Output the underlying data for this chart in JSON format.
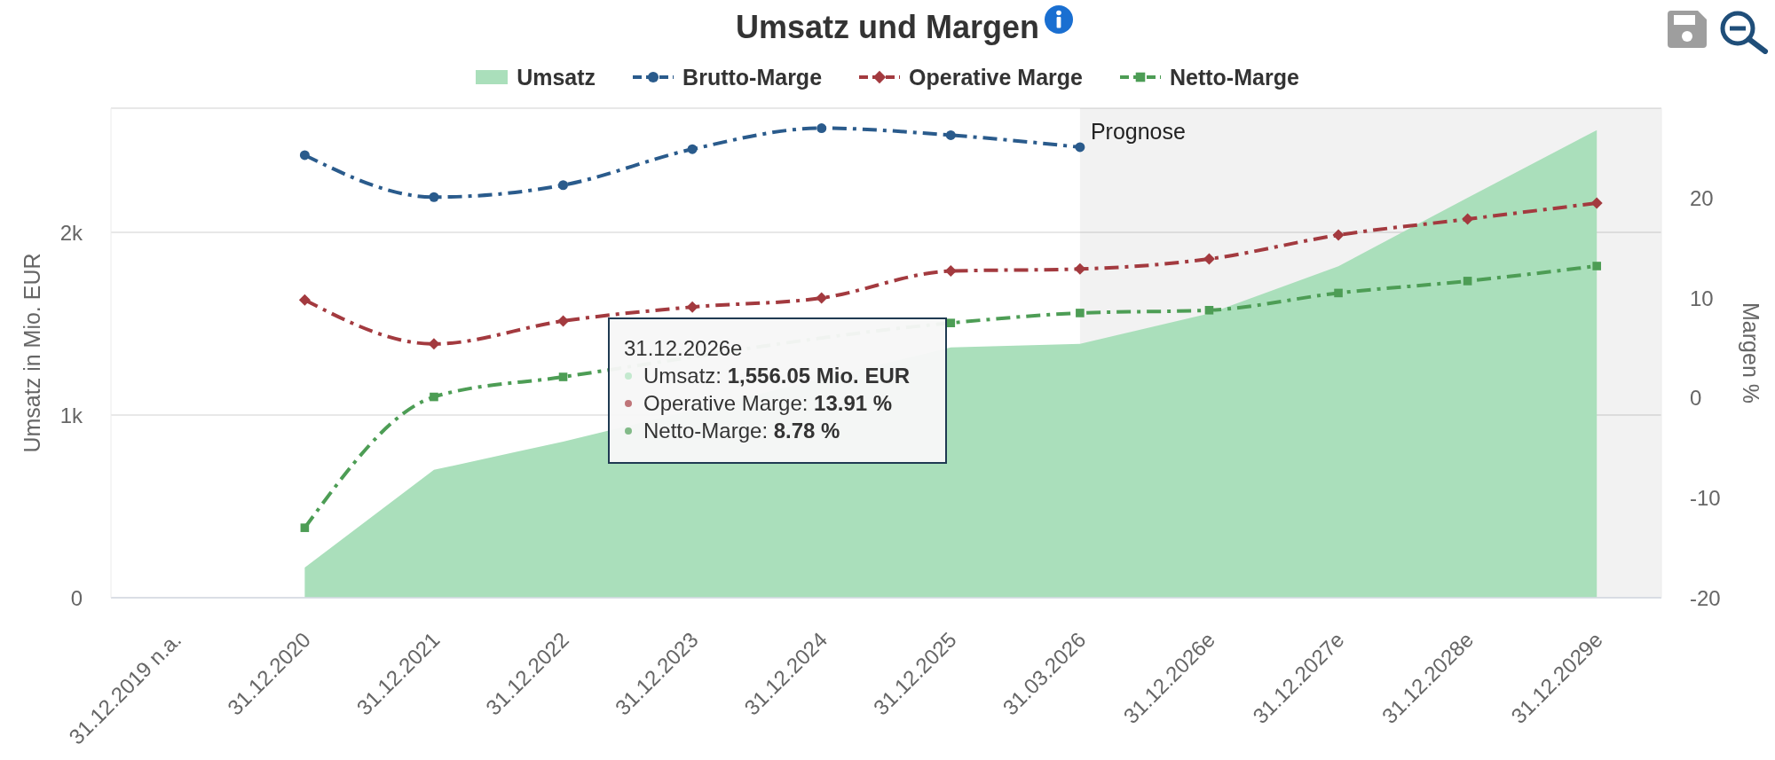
{
  "chart_data": {
    "type": "line",
    "title": "Umsatz und Margen",
    "ylabel": "Umsatz in Mio. EUR",
    "y2label": "Margen %",
    "categories": [
      "31.12.2019 n.a.",
      "31.12.2020",
      "31.12.2021",
      "31.12.2022",
      "31.12.2023",
      "31.12.2024",
      "31.12.2025",
      "31.03.2026",
      "31.12.2026e",
      "31.12.2027e",
      "31.12.2028e",
      "31.12.2029e"
    ],
    "series": [
      {
        "name": "Umsatz",
        "type": "area",
        "color": "#aadfbb",
        "values": [
          null,
          165,
          700,
          855,
          null,
          null,
          1370,
          1390,
          1556.05,
          1815,
          2190,
          2560
        ]
      },
      {
        "name": "Brutto-Marge",
        "axis": "y2",
        "color": "#2a5b8c",
        "marker": "circle",
        "values": [
          null,
          24.3,
          20.1,
          21.3,
          24.9,
          27.0,
          26.3,
          25.1,
          null,
          null,
          null,
          null
        ]
      },
      {
        "name": "Operative Marge",
        "axis": "y2",
        "color": "#a33a3f",
        "marker": "diamond",
        "values": [
          null,
          9.8,
          5.4,
          7.7,
          9.1,
          10.0,
          12.7,
          12.9,
          13.91,
          16.3,
          17.9,
          19.5
        ]
      },
      {
        "name": "Netto-Marge",
        "axis": "y2",
        "color": "#4d9d55",
        "marker": "square",
        "values": [
          null,
          -13.0,
          0.1,
          2.1,
          null,
          null,
          7.5,
          8.5,
          8.78,
          10.5,
          11.7,
          13.2
        ]
      }
    ],
    "ylim": [
      0,
      2680
    ],
    "yticks": [
      0,
      {
        "value": 1000,
        "label": "1k"
      },
      {
        "value": 2000,
        "label": "2k"
      }
    ],
    "y2lim": [
      -20,
      29
    ],
    "y2ticks": [
      -20,
      -10,
      0,
      10,
      20
    ],
    "grid": "y",
    "legend": "top",
    "line_style": "dashed",
    "bands": [
      {
        "axis": "x",
        "from": "31.03.2026",
        "to": "31.12.2029e",
        "label": "Prognose",
        "color": "#f2f2f2"
      }
    ],
    "annotations": [
      "31.12.2026e",
      "Umsatz: 1,556.05 Mio. EUR",
      "Operative Marge: 13.91 %",
      "Netto-Marge: 8.78 %"
    ]
  }
}
